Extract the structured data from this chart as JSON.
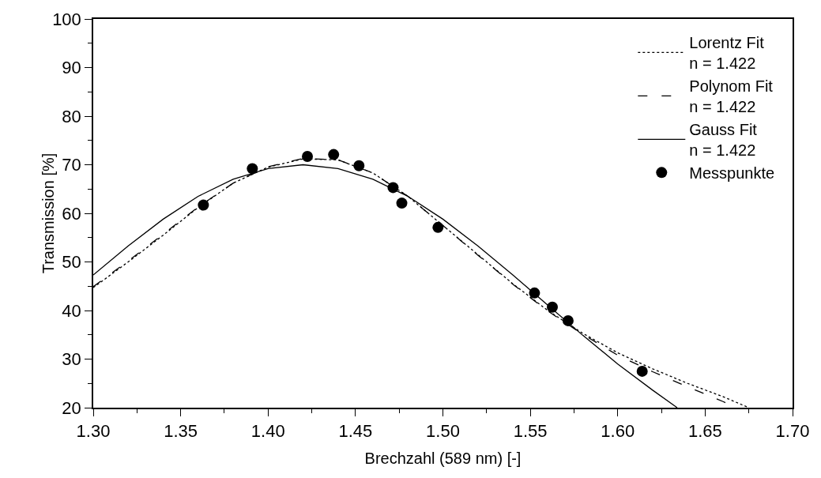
{
  "chart_data": {
    "type": "scatter",
    "xlabel": "Brechzahl (589 nm) [-]",
    "ylabel": "Transmission [%]",
    "xlim": [
      1.3,
      1.7
    ],
    "xticks": [
      {
        "value": 1.3,
        "label": "1.30"
      },
      {
        "value": 1.35,
        "label": "1.35"
      },
      {
        "value": 1.4,
        "label": "1.40"
      },
      {
        "value": 1.45,
        "label": "1.45"
      },
      {
        "value": 1.5,
        "label": "1.50"
      },
      {
        "value": 1.55,
        "label": "1.55"
      },
      {
        "value": 1.6,
        "label": "1.60"
      },
      {
        "value": 1.65,
        "label": "1.65"
      },
      {
        "value": 1.7,
        "label": "1.70"
      }
    ],
    "ylim": [
      20,
      100
    ],
    "yticks": [
      20,
      30,
      40,
      50,
      60,
      70,
      80,
      90,
      100
    ],
    "grid": false,
    "legend": "top right",
    "series": [
      {
        "name": "Lorentz Fit\nn = 1.422",
        "type": "line",
        "line_style": "dotted",
        "marker": "none",
        "color": "#000000",
        "x": [
          1.3,
          1.32,
          1.34,
          1.36,
          1.38,
          1.4,
          1.42,
          1.44,
          1.46,
          1.48,
          1.5,
          1.52,
          1.54,
          1.56,
          1.58,
          1.6,
          1.62,
          1.64,
          1.66,
          1.675
        ],
        "values": [
          44.7,
          50,
          55.5,
          61.2,
          66.2,
          69.5,
          71.2,
          71,
          68.3,
          63.5,
          57.5,
          51.5,
          45.5,
          40,
          35.3,
          31.3,
          28,
          25,
          22.3,
          20
        ]
      },
      {
        "name": "Polynom Fit\nn = 1.422",
        "type": "line",
        "line_style": "dashed",
        "marker": "none",
        "color": "#000000",
        "x": [
          1.3,
          1.32,
          1.34,
          1.36,
          1.38,
          1.4,
          1.42,
          1.44,
          1.46,
          1.48,
          1.5,
          1.52,
          1.54,
          1.56,
          1.58,
          1.6,
          1.62,
          1.64,
          1.66,
          1.668
        ],
        "values": [
          44.9,
          50.2,
          55.7,
          61.3,
          66.2,
          69.6,
          71.3,
          71,
          68.3,
          63.5,
          57.5,
          51.4,
          45.4,
          39.9,
          35.1,
          30.8,
          27.4,
          24.3,
          21.3,
          20
        ]
      },
      {
        "name": "Gauss Fit\nn = 1.422",
        "type": "line",
        "line_style": "solid",
        "marker": "none",
        "color": "#000000",
        "x": [
          1.3,
          1.32,
          1.34,
          1.36,
          1.38,
          1.4,
          1.42,
          1.44,
          1.46,
          1.48,
          1.5,
          1.52,
          1.54,
          1.56,
          1.58,
          1.6,
          1.62,
          1.634
        ],
        "values": [
          47.3,
          53.3,
          58.8,
          63.5,
          67,
          69.2,
          70,
          69.2,
          67,
          63.5,
          58.8,
          53.3,
          47.3,
          41.1,
          34.9,
          29,
          23.6,
          20
        ]
      },
      {
        "name": "Messpunkte",
        "marker": "circle",
        "color": "#000000",
        "x": [
          1.363,
          1.391,
          1.4225,
          1.4375,
          1.452,
          1.4715,
          1.4765,
          1.4972,
          1.5524,
          1.5626,
          1.5716,
          1.614
        ],
        "values": [
          61.7,
          69.2,
          71.7,
          72.1,
          69.8,
          65.3,
          62.1,
          57.1,
          43.6,
          40.7,
          37.9,
          27.5
        ]
      }
    ]
  }
}
